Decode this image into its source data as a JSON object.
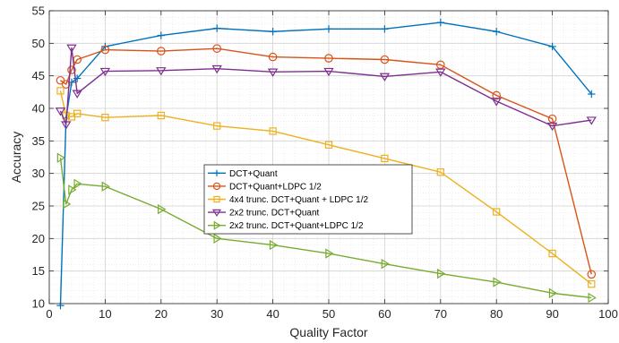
{
  "chart_data": {
    "type": "line",
    "xlabel": "Quality Factor",
    "ylabel": "Accuracy",
    "xlim": [
      0,
      100
    ],
    "ylim": [
      10,
      55
    ],
    "xticks": [
      0,
      10,
      20,
      30,
      40,
      50,
      60,
      70,
      80,
      90,
      100
    ],
    "yticks": [
      10,
      15,
      20,
      25,
      30,
      35,
      40,
      45,
      50,
      55
    ],
    "grid": true,
    "minor_grid": true,
    "legend_position": "center",
    "series": [
      {
        "name": "DCT+Quant",
        "color": "#0072BD",
        "marker": "plus",
        "x": [
          2,
          3,
          4,
          5,
          10,
          20,
          30,
          40,
          50,
          60,
          70,
          80,
          90,
          97
        ],
        "y": [
          9.7,
          38.5,
          44.0,
          44.6,
          49.5,
          51.2,
          52.3,
          51.8,
          52.2,
          52.2,
          53.2,
          51.8,
          49.5,
          42.2
        ]
      },
      {
        "name": "DCT+Quant+LDPC 1/2",
        "color": "#D95319",
        "marker": "circle",
        "x": [
          2,
          3,
          4,
          5,
          10,
          20,
          30,
          40,
          50,
          60,
          70,
          80,
          90,
          97
        ],
        "y": [
          44.3,
          43.7,
          45.9,
          47.5,
          49.0,
          48.8,
          49.2,
          47.9,
          47.7,
          47.5,
          46.7,
          42.0,
          38.4,
          14.5
        ]
      },
      {
        "name": "4x4 trunc. DCT+Quant + LDPC 1/2",
        "color": "#EDB120",
        "marker": "square",
        "x": [
          2,
          3,
          4,
          5,
          10,
          20,
          30,
          40,
          50,
          60,
          70,
          80,
          90,
          97
        ],
        "y": [
          42.7,
          38.9,
          38.7,
          39.2,
          38.6,
          38.9,
          37.3,
          36.5,
          34.4,
          32.3,
          30.2,
          24.1,
          17.7,
          13.0
        ]
      },
      {
        "name": "2x2 trunc. DCT+Quant",
        "color": "#7E2F8E",
        "marker": "triangle-down",
        "x": [
          2,
          3,
          4,
          5,
          10,
          20,
          30,
          40,
          50,
          60,
          70,
          80,
          90,
          97
        ],
        "y": [
          39.6,
          37.5,
          49.3,
          42.3,
          45.7,
          45.8,
          46.1,
          45.6,
          45.7,
          44.9,
          45.6,
          41.1,
          37.3,
          38.2
        ]
      },
      {
        "name": "2x2 trunc. DCT+Quant+LDPC 1/2",
        "color": "#77AC30",
        "marker": "triangle-right",
        "x": [
          2,
          3,
          4,
          5,
          10,
          20,
          30,
          40,
          50,
          60,
          70,
          80,
          90,
          97
        ],
        "y": [
          32.4,
          25.3,
          27.5,
          28.4,
          28.0,
          24.5,
          20.0,
          19.0,
          17.7,
          16.1,
          14.6,
          13.3,
          11.6,
          10.9
        ]
      }
    ]
  }
}
